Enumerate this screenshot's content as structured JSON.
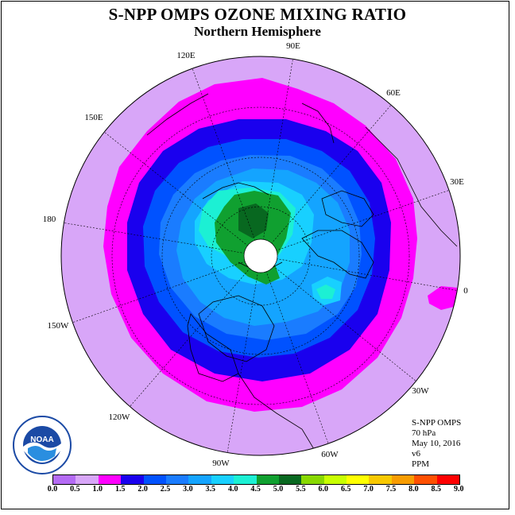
{
  "title": "S-NPP OMPS OZONE MIXING RATIO",
  "subtitle": "Northern Hemisphere",
  "longitude_labels": [
    "90E",
    "60E",
    "30E",
    "0",
    "30W",
    "60W",
    "90W",
    "120W",
    "150W",
    "180",
    "150E",
    "120E"
  ],
  "info": {
    "satellite": "S-NPP OMPS",
    "level": "70 hPa",
    "date": "May 10, 2016",
    "version": "v6",
    "units": "PPM"
  },
  "logo_text": "NOAA",
  "colorbar": {
    "ticks": [
      "0.0",
      "0.5",
      "1.0",
      "1.5",
      "2.0",
      "2.5",
      "3.0",
      "3.5",
      "4.0",
      "4.5",
      "5.0",
      "5.5",
      "6.0",
      "6.5",
      "7.0",
      "7.5",
      "8.0",
      "8.5",
      "9.0"
    ],
    "colors": [
      "#b46bf4",
      "#d8a6f8",
      "#ff00ff",
      "#1a00ee",
      "#0052ff",
      "#1a7cff",
      "#14a4ff",
      "#18d0ff",
      "#1cf0d4",
      "#10a030",
      "#086820",
      "#88d800",
      "#c8ff00",
      "#ffff00",
      "#f8c800",
      "#f89c00",
      "#ff5000",
      "#ff0000",
      "#8a5030"
    ]
  }
}
